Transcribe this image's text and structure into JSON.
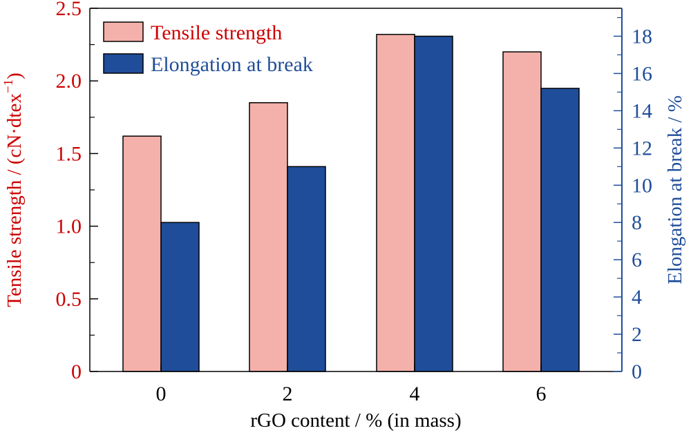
{
  "chart_data": {
    "type": "bar",
    "categories": [
      "0",
      "2",
      "4",
      "6"
    ],
    "series": [
      {
        "name": "Tensile strength",
        "values": [
          1.62,
          1.85,
          2.32,
          2.2
        ],
        "axis": "left",
        "color": "#f4b1ab"
      },
      {
        "name": "Elongation at break",
        "values": [
          8.0,
          11.0,
          18.0,
          15.2
        ],
        "axis": "right",
        "color": "#1f4d99"
      }
    ],
    "xlabel": "rGO content / % (in mass)",
    "ylabel_left": {
      "prefix": "Tensile strength / (cN·dtex",
      "superscript": "−1",
      "suffix": ")"
    },
    "ylabel_right": "Elongation at break / %",
    "ylim_left": [
      0,
      2.5
    ],
    "ylim_right": [
      0,
      19.5
    ],
    "yticks_left": [
      "0",
      "0.5",
      "1.0",
      "1.5",
      "2.0",
      "2.5"
    ],
    "yticks_right": [
      "0",
      "2",
      "4",
      "6",
      "8",
      "10",
      "12",
      "14",
      "16",
      "18"
    ],
    "legend_position": "top-left",
    "grid": false,
    "colors": {
      "left_axis": "#cc0000",
      "right_axis": "#1f4d99",
      "bar_edge": "#000000"
    }
  }
}
